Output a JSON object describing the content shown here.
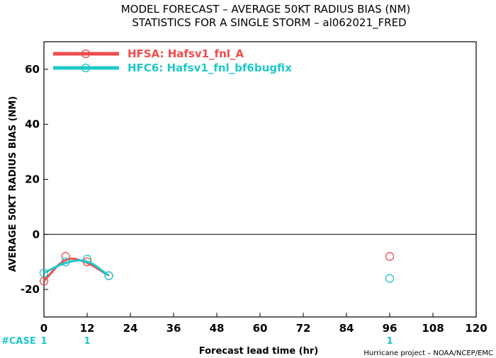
{
  "title_line1": "MODEL FORECAST – AVERAGE 50KT RADIUS BIAS (NM)",
  "title_line2": "STATISTICS FOR A SINGLE STORM – al062021_FRED",
  "credit": "Hurricane project – NOAA/NCEP/EMC",
  "case_label": "#CASE",
  "colors": {
    "hfsa": "#f04b4b",
    "hfc6": "#1fc8c8",
    "case_text": "#1fc8c8",
    "zero_line": "#000000"
  },
  "chart_data": {
    "type": "line",
    "xlabel": "Forecast lead time (hr)",
    "ylabel": "AVERAGE 50KT RADIUS BIAS (NM)",
    "xlim": [
      0,
      120
    ],
    "ylim": [
      -30,
      70
    ],
    "xticks": [
      0,
      12,
      24,
      36,
      48,
      60,
      72,
      84,
      96,
      108,
      120
    ],
    "yticks": [
      -20,
      0,
      20,
      40,
      60
    ],
    "legend_position": "top-left",
    "grid": false,
    "series": [
      {
        "name": "HFSA: Hafsv1_fnl_A",
        "color": "#f04b4b",
        "x": [
          0,
          6,
          12,
          18,
          96
        ],
        "y": [
          -17,
          -8,
          -10,
          -15,
          -8
        ]
      },
      {
        "name": "HFC6: Hafsv1_fnl_bf6bugfix",
        "color": "#1fc8c8",
        "x": [
          0,
          6,
          12,
          18,
          96
        ],
        "y": [
          -14,
          -10,
          -9,
          -15,
          -16
        ]
      }
    ],
    "cases": [
      {
        "x": 0,
        "label": "1"
      },
      {
        "x": 12,
        "label": "1"
      },
      {
        "x": 96,
        "label": "1"
      }
    ]
  }
}
